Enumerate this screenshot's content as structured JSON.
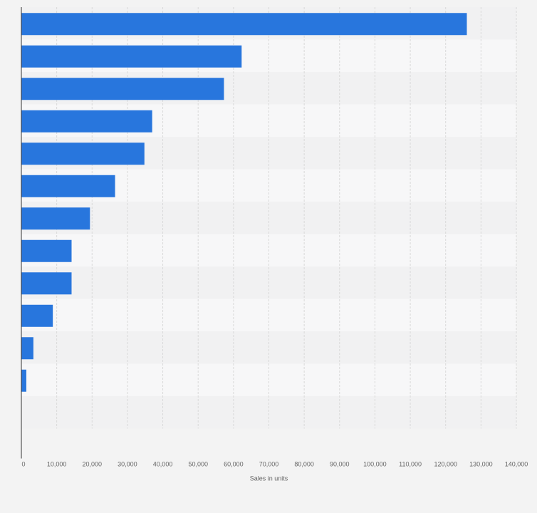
{
  "colors": {
    "background": "#f3f3f3",
    "band_light": "#f7f7f8",
    "band_dark": "#f1f1f2",
    "bar": "#2876dd",
    "grid": "#d9d9d9",
    "axis": "#333333"
  },
  "chart_data": {
    "type": "bar",
    "orientation": "horizontal",
    "title": "",
    "xlabel": "Sales in units",
    "ylabel": "",
    "categories": [
      "",
      "",
      "",
      "",
      "",
      "",
      "",
      "",
      "",
      "",
      "",
      ""
    ],
    "values": [
      126000,
      62300,
      57300,
      37000,
      34800,
      26500,
      19400,
      14200,
      14200,
      8900,
      3400,
      1400
    ],
    "xlim": [
      0,
      140000
    ],
    "ticks": [
      {
        "value": 0,
        "label": "0"
      },
      {
        "value": 10000,
        "label": "10,000"
      },
      {
        "value": 20000,
        "label": "20,000"
      },
      {
        "value": 30000,
        "label": "30,000"
      },
      {
        "value": 40000,
        "label": "40,000"
      },
      {
        "value": 50000,
        "label": "50,000"
      },
      {
        "value": 60000,
        "label": "60,000"
      },
      {
        "value": 70000,
        "label": "70,000"
      },
      {
        "value": 80000,
        "label": "80,000"
      },
      {
        "value": 90000,
        "label": "90,000"
      },
      {
        "value": 100000,
        "label": "100,000"
      },
      {
        "value": 110000,
        "label": "110,000"
      },
      {
        "value": 120000,
        "label": "120,000"
      },
      {
        "value": 130000,
        "label": "130,000"
      },
      {
        "value": 140000,
        "label": "140,000"
      }
    ],
    "grid": true,
    "legend": "none"
  }
}
